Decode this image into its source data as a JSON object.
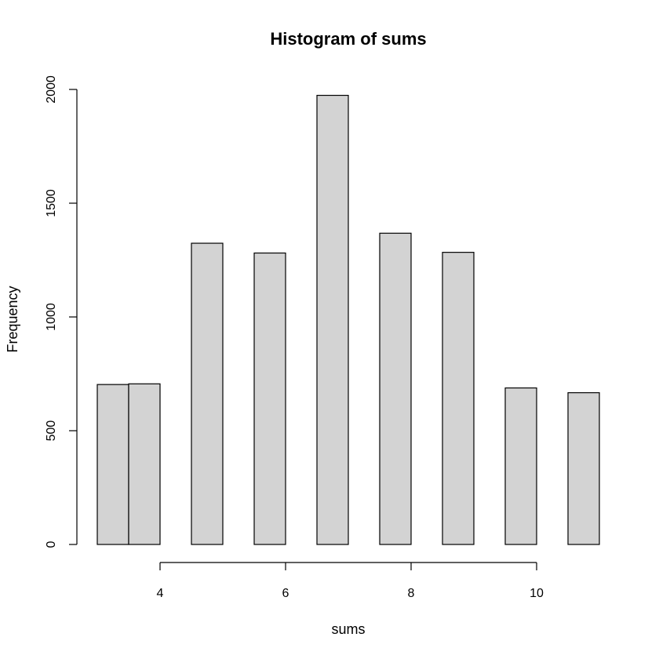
{
  "chart_data": {
    "type": "bar",
    "title": "Histogram of sums",
    "xlabel": "sums",
    "ylabel": "Frequency",
    "bins": [
      {
        "x0": 3.0,
        "x1": 3.5,
        "count": 703
      },
      {
        "x0": 3.5,
        "x1": 4.0,
        "count": 706
      },
      {
        "x0": 4.5,
        "x1": 5.0,
        "count": 1324
      },
      {
        "x0": 5.5,
        "x1": 6.0,
        "count": 1281
      },
      {
        "x0": 6.5,
        "x1": 7.0,
        "count": 1974
      },
      {
        "x0": 7.5,
        "x1": 8.0,
        "count": 1368
      },
      {
        "x0": 8.5,
        "x1": 9.0,
        "count": 1284
      },
      {
        "x0": 9.5,
        "x1": 10.0,
        "count": 688
      },
      {
        "x0": 10.5,
        "x1": 11.0,
        "count": 667
      }
    ],
    "xlim": [
      3.0,
      11.0
    ],
    "ylim": [
      0,
      2000
    ],
    "x_ticks": [
      4,
      6,
      8,
      10
    ],
    "x_tick_labels": [
      "4",
      "6",
      "8",
      "10"
    ],
    "y_ticks": [
      0,
      500,
      1000,
      1500,
      2000
    ],
    "y_tick_labels": [
      "0",
      "500",
      "1000",
      "1500",
      "2000"
    ],
    "grid": false,
    "legend": "none",
    "bar_fill": "#d3d3d3",
    "bar_stroke": "#000000"
  }
}
